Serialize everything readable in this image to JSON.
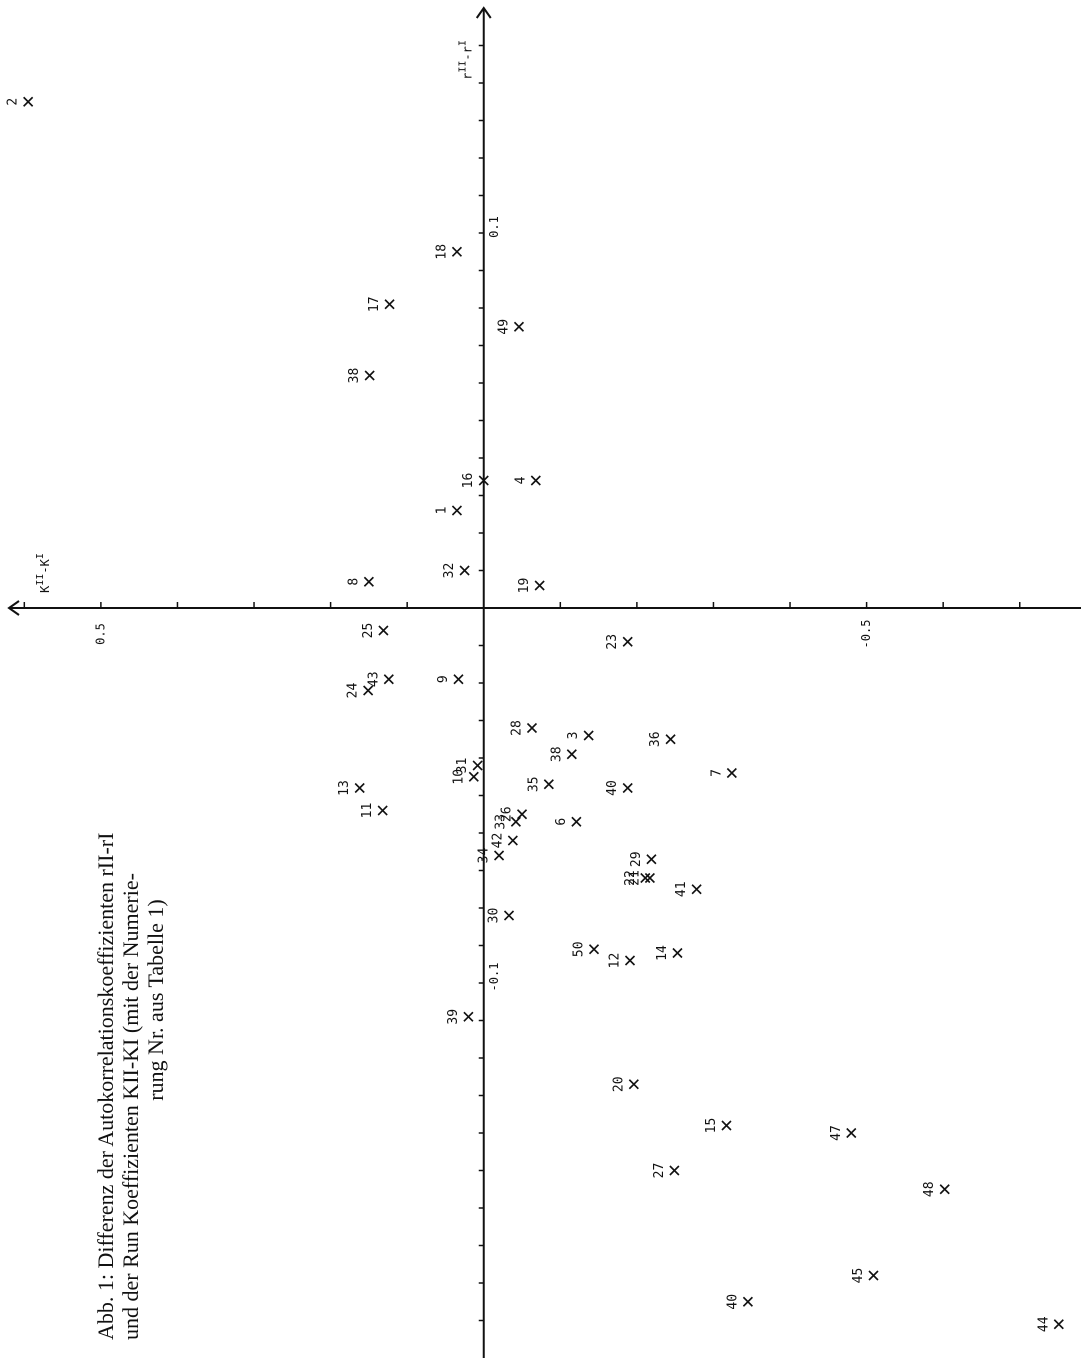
{
  "chart_data": {
    "type": "scatter",
    "caption": [
      "Abb. 1: Differenz der Autokorrelationskoeffizienten rII-rI",
      "und der Run Koeffizienten KII-KI (mit der Numerie-",
      "rung Nr. aus Tabelle 1)"
    ],
    "x_label": [
      "r",
      "II",
      "-r",
      "I"
    ],
    "y_label": [
      "K",
      "II",
      "-K",
      "I"
    ],
    "xlim": [
      -0.2,
      0.16
    ],
    "ylim": [
      -0.78,
      0.62
    ],
    "xticks": [
      -0.1,
      0.1
    ],
    "yticks": [
      -0.5,
      0.5
    ],
    "x_minor_ticks": [
      -0.19,
      -0.18,
      -0.17,
      -0.16,
      -0.15,
      -0.14,
      -0.13,
      -0.12,
      -0.11,
      -0.1,
      -0.09,
      -0.08,
      -0.07,
      -0.06,
      -0.05,
      -0.04,
      -0.03,
      -0.02,
      -0.01,
      0.01,
      0.02,
      0.03,
      0.04,
      0.05,
      0.06,
      0.07,
      0.08,
      0.09,
      0.1,
      0.11,
      0.12,
      0.13,
      0.14,
      0.15
    ],
    "y_minor_ticks": [
      -0.7,
      -0.6,
      -0.5,
      -0.4,
      -0.3,
      -0.2,
      -0.1,
      0.1,
      0.2,
      0.3,
      0.4,
      0.5,
      0.6
    ],
    "point_labels": [
      "2",
      "18",
      "17",
      "49",
      "38",
      "16",
      "4",
      "1",
      "32",
      "8",
      "19",
      "25",
      "23",
      "24",
      "43",
      "9",
      "28",
      "3",
      "36",
      "38",
      "10",
      "31",
      "7",
      "13",
      "35",
      "40",
      "11",
      "33",
      "26",
      "6",
      "42",
      "34",
      "29",
      "22",
      "21",
      "41",
      "30",
      "50",
      "12",
      "14",
      "39",
      "20",
      "15",
      "47",
      "27",
      "48",
      "45",
      "40",
      "44"
    ],
    "x": [
      0.135,
      0.095,
      0.081,
      0.075,
      0.062,
      0.034,
      0.034,
      0.026,
      0.01,
      0.007,
      0.006,
      -0.006,
      -0.009,
      -0.022,
      -0.019,
      -0.019,
      -0.032,
      -0.034,
      -0.035,
      -0.039,
      -0.045,
      -0.042,
      -0.044,
      -0.048,
      -0.047,
      -0.048,
      -0.054,
      -0.057,
      -0.055,
      -0.057,
      -0.062,
      -0.066,
      -0.067,
      -0.072,
      -0.072,
      -0.075,
      -0.082,
      -0.091,
      -0.094,
      -0.092,
      -0.109,
      -0.127,
      -0.138,
      -0.14,
      -0.15,
      -0.155,
      -0.178,
      -0.185,
      -0.191
    ],
    "values": [
      0.595,
      0.035,
      0.123,
      -0.046,
      0.149,
      0,
      -0.068,
      0.035,
      0.025,
      0.15,
      -0.073,
      0.131,
      -0.188,
      0.151,
      0.124,
      0.033,
      -0.063,
      -0.137,
      -0.244,
      -0.115,
      0.013,
      0.008,
      -0.324,
      0.162,
      -0.085,
      -0.188,
      0.132,
      -0.042,
      -0.05,
      -0.121,
      -0.038,
      -0.02,
      -0.219,
      -0.211,
      -0.217,
      -0.278,
      -0.033,
      -0.144,
      -0.191,
      -0.253,
      0.02,
      -0.196,
      -0.317,
      -0.48,
      -0.249,
      -0.602,
      -0.509,
      -0.345,
      -0.751
    ]
  }
}
